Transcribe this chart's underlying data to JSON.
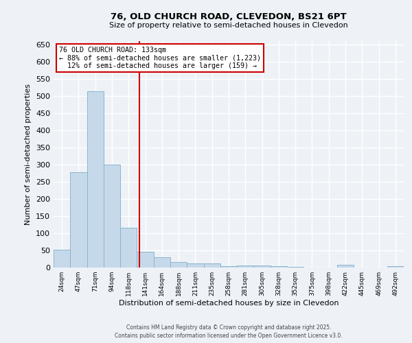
{
  "title1": "76, OLD CHURCH ROAD, CLEVEDON, BS21 6PT",
  "title2": "Size of property relative to semi-detached houses in Clevedon",
  "xlabel": "Distribution of semi-detached houses by size in Clevedon",
  "ylabel": "Number of semi-detached properties",
  "bar_values": [
    52,
    278,
    515,
    300,
    117,
    47,
    30,
    17,
    12,
    12,
    5,
    7,
    7,
    5,
    3,
    0,
    0,
    8,
    0,
    0,
    5
  ],
  "bin_labels": [
    "24sqm",
    "47sqm",
    "71sqm",
    "94sqm",
    "118sqm",
    "141sqm",
    "164sqm",
    "188sqm",
    "211sqm",
    "235sqm",
    "258sqm",
    "281sqm",
    "305sqm",
    "328sqm",
    "352sqm",
    "375sqm",
    "398sqm",
    "422sqm",
    "445sqm",
    "469sqm",
    "492sqm"
  ],
  "bar_color": "#c6d9ea",
  "bar_edge_color": "#8ab4cc",
  "vline_color": "#cc0000",
  "annotation_text": "76 OLD CHURCH ROAD: 133sqm\n← 88% of semi-detached houses are smaller (1,223)\n  12% of semi-detached houses are larger (159) →",
  "annotation_box_color": "#cc0000",
  "ylim": [
    0,
    660
  ],
  "yticks": [
    0,
    50,
    100,
    150,
    200,
    250,
    300,
    350,
    400,
    450,
    500,
    550,
    600,
    650
  ],
  "footnote1": "Contains HM Land Registry data © Crown copyright and database right 2025.",
  "footnote2": "Contains public sector information licensed under the Open Government Licence v3.0.",
  "bg_color": "#eef2f7",
  "grid_color": "#ffffff"
}
